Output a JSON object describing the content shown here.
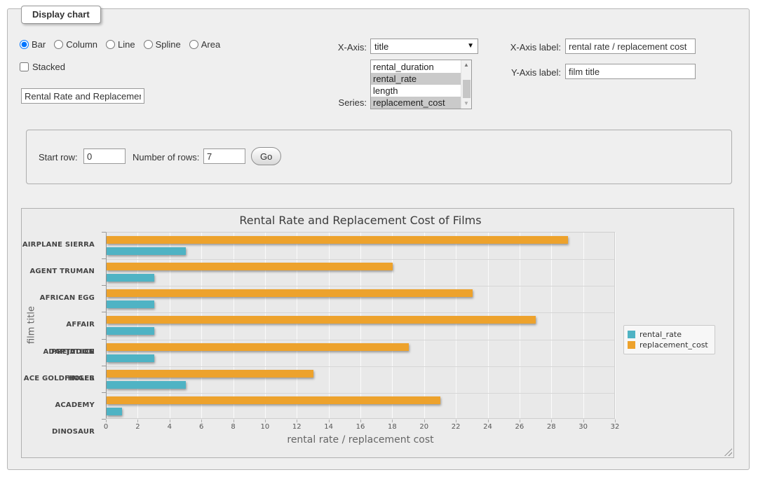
{
  "panel": {
    "legend": "Display chart",
    "chart_types": [
      {
        "label": "Bar",
        "checked": true
      },
      {
        "label": "Column",
        "checked": false
      },
      {
        "label": "Line",
        "checked": false
      },
      {
        "label": "Spline",
        "checked": false
      },
      {
        "label": "Area",
        "checked": false
      }
    ],
    "stacked_label": "Stacked",
    "stacked_checked": false,
    "chart_title_input": "Rental Rate and Replacement Cost of Films",
    "x_axis": {
      "label": "X-Axis:",
      "selected": "title"
    },
    "series_picker": {
      "label": "Series:",
      "options": [
        {
          "label": "rental_duration",
          "selected": false
        },
        {
          "label": "rental_rate",
          "selected": true
        },
        {
          "label": "length",
          "selected": false
        },
        {
          "label": "replacement_cost",
          "selected": true
        }
      ]
    },
    "x_axis_label": {
      "label": "X-Axis label:",
      "value": "rental rate / replacement cost"
    },
    "y_axis_label": {
      "label": "Y-Axis label:",
      "value": "film title"
    },
    "rows_form": {
      "start_row_label": "Start row:",
      "start_row_value": "0",
      "num_rows_label": "Number of rows:",
      "num_rows_value": "7",
      "go_label": "Go"
    }
  },
  "chart_data": {
    "type": "bar",
    "title": "Rental Rate and Replacement Cost of Films",
    "xlabel": "rental rate / replacement cost",
    "ylabel": "film title",
    "categories_top_to_bottom": [
      "AIRPLANE SIERRA",
      "AGENT TRUMAN",
      "AFRICAN EGG",
      "AFFAIR PREJUDICE",
      "ADAPTATION HOLES",
      "ACE GOLDFINGER",
      "ACADEMY DINOSAUR"
    ],
    "series": [
      {
        "name": "rental_rate",
        "color": "#4fb3c4",
        "values": [
          4.99,
          2.99,
          2.99,
          2.99,
          2.99,
          4.99,
          0.99
        ]
      },
      {
        "name": "replacement_cost",
        "color": "#eda22c",
        "values": [
          28.99,
          17.99,
          22.99,
          26.99,
          18.99,
          12.99,
          20.99
        ]
      }
    ],
    "group_order_top_to_bottom": [
      "replacement_cost",
      "rental_rate"
    ],
    "value_axis": {
      "min": 0,
      "max": 32,
      "tick_step": 2
    },
    "grid": true,
    "legend_position": "right"
  }
}
